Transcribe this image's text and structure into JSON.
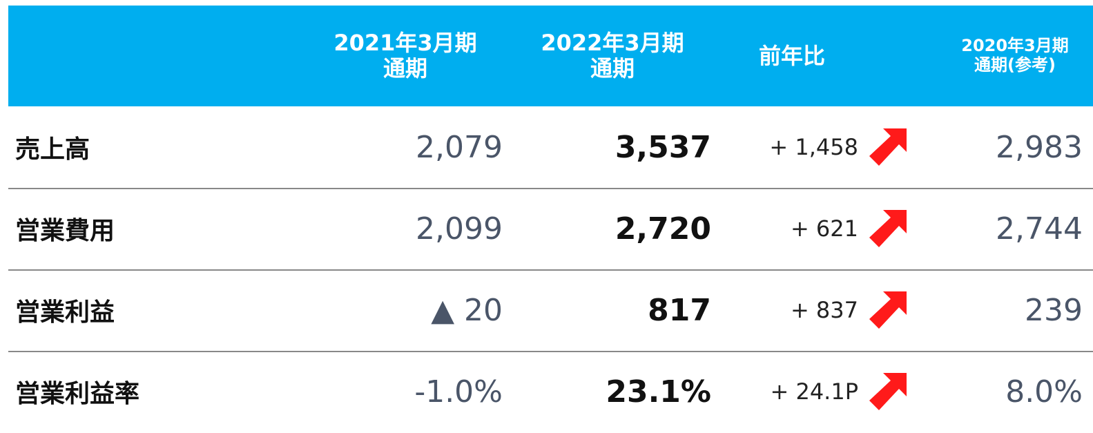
{
  "table": {
    "header": [
      [
        "2021年3月期",
        "通期"
      ],
      [
        "2022年3月期",
        "通期"
      ],
      [
        "前年比"
      ],
      [
        "2020年3月期",
        "通期(参考)"
      ]
    ],
    "rows": [
      {
        "label": "売上高",
        "prev": "2,079",
        "curr": "3,537",
        "diff": "+ 1,458",
        "ref": "2,983"
      },
      {
        "label": "営業費用",
        "prev": "2,099",
        "curr": "2,720",
        "diff": "+ 621",
        "ref": "2,744"
      },
      {
        "label": "営業利益",
        "prev": "▲ 20",
        "curr": "817",
        "diff": "+ 837",
        "ref": "239"
      },
      {
        "label": "営業利益率",
        "prev": "-1.0%",
        "curr": "23.1%",
        "diff": "+ 24.1P",
        "ref": "8.0%"
      }
    ]
  }
}
